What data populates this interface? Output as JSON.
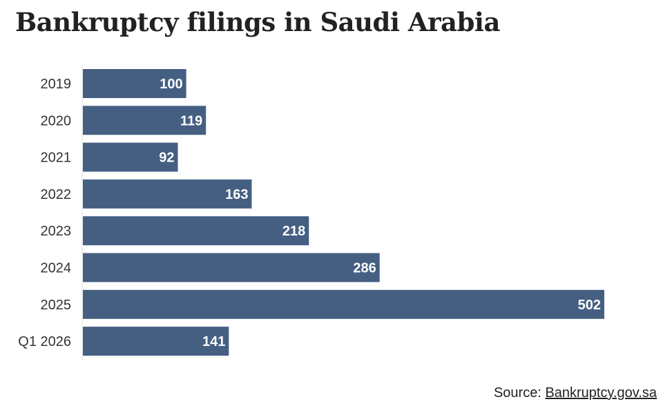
{
  "chart_data": {
    "type": "bar",
    "orientation": "horizontal",
    "title": "Bankruptcy filings in Saudi Arabia",
    "categories": [
      "2019",
      "2020",
      "2021",
      "2022",
      "2023",
      "2024",
      "2025",
      "Q1 2026"
    ],
    "values": [
      100,
      119,
      92,
      163,
      218,
      286,
      502,
      141
    ],
    "xlabel": "",
    "ylabel": "",
    "xlim": [
      0,
      502
    ],
    "grid": false,
    "legend": "none",
    "bar_color": "#445f82",
    "label_color": "#ffffff"
  },
  "source": {
    "prefix": "Source: ",
    "link_text": "Bankruptcy.gov.sa"
  }
}
